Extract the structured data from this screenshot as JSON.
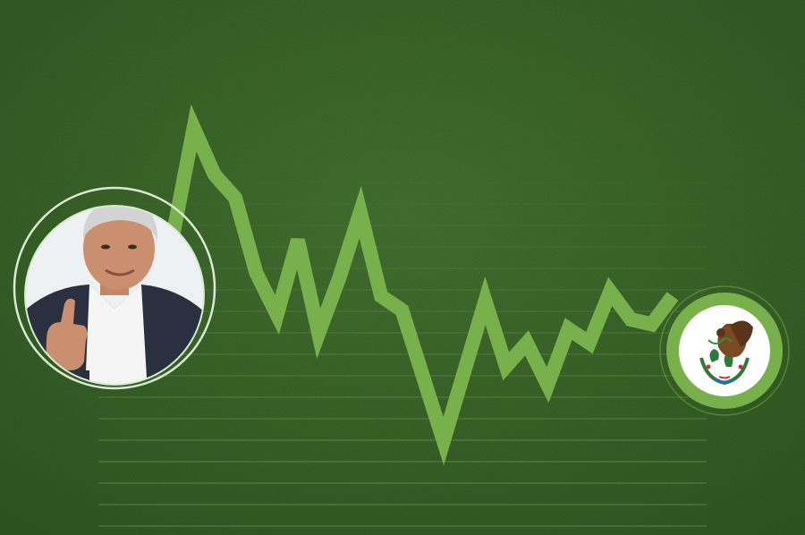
{
  "colors": {
    "background": "#3f6a2a",
    "background_dark": "#2f5520",
    "line": "#78b04c",
    "grid": "#8cc066",
    "ring": "#d9ead0",
    "flag_ring": "#6aa340",
    "suit": "#2a3040",
    "shirt": "#f4f4f4",
    "skin": "#c98f6e",
    "hair": "#cfcfcf"
  },
  "icons": {
    "portrait": "man-thumbs-up-portrait",
    "badge": "mexico-coat-of-arms-icon"
  },
  "line_series": {
    "type": "line",
    "x": [
      0,
      1,
      2,
      3,
      4,
      5,
      6,
      7,
      8,
      9,
      10,
      11,
      12,
      13,
      14,
      15,
      16,
      17,
      18,
      19,
      20,
      21,
      22,
      23,
      24,
      25
    ],
    "values": [
      8,
      46,
      92,
      72,
      62,
      30,
      12,
      44,
      4,
      28,
      56,
      20,
      14,
      -14,
      -42,
      -12,
      18,
      -10,
      0,
      -18,
      6,
      0,
      22,
      10,
      8,
      20
    ],
    "ylim": [
      -60,
      100
    ]
  }
}
